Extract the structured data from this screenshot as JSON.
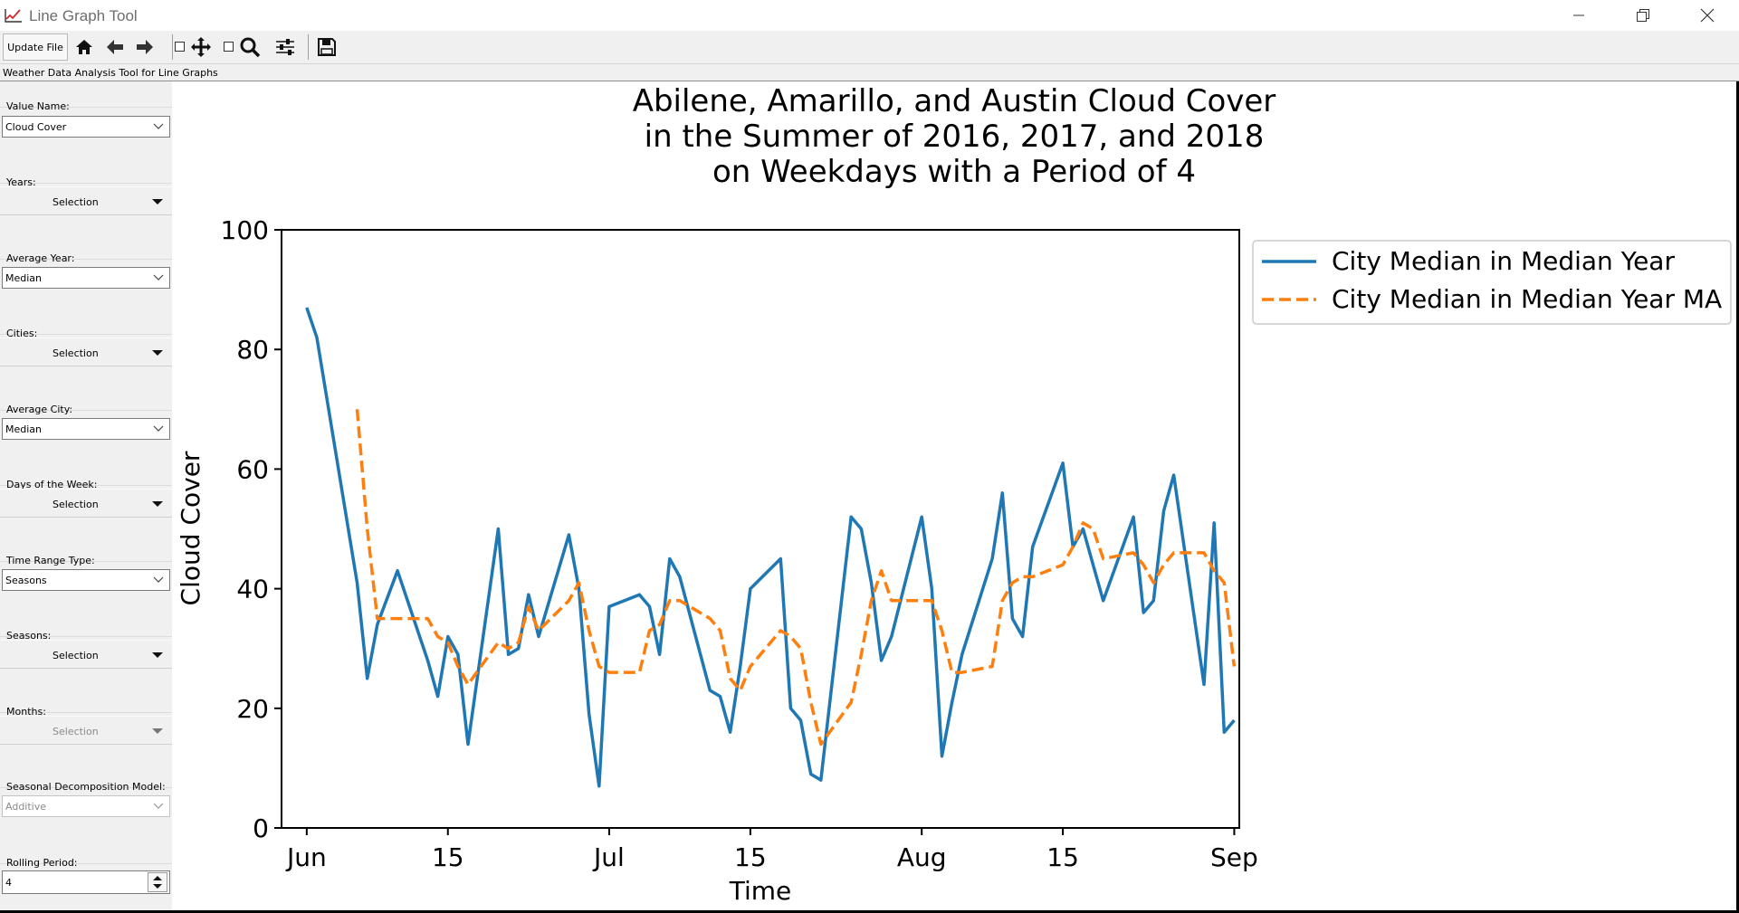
{
  "window": {
    "title": "Line Graph Tool"
  },
  "toolbar": {
    "update_label": "Update File",
    "icons": [
      "home-icon",
      "back-arrow-icon",
      "forward-arrow-icon",
      "pan-icon",
      "zoom-icon",
      "configure-subplots-icon",
      "save-icon"
    ]
  },
  "status_text": "Weather Data Analysis Tool for Line Graphs",
  "sidebar": {
    "value_name_label": "Value Name:",
    "value_name": "Cloud Cover",
    "years_label": "Years:",
    "years_button": "Selection",
    "average_year_label": "Average Year:",
    "average_year": "Median",
    "cities_label": "Cities:",
    "cities_button": "Selection",
    "average_city_label": "Average City:",
    "average_city": "Median",
    "days_label": "Days of the Week:",
    "days_button": "Selection",
    "time_range_label": "Time Range Type:",
    "time_range": "Seasons",
    "seasons_label": "Seasons:",
    "seasons_button": "Selection",
    "months_label": "Months:",
    "months_button": "Selection",
    "decomp_label": "Seasonal Decomposition Model:",
    "decomp_value": "Additive",
    "rolling_label": "Rolling Period:",
    "rolling_value": "4"
  },
  "chart_data": {
    "type": "line",
    "title_lines": [
      "Abilene, Amarillo, and Austin Cloud Cover",
      "in the Summer of 2016, 2017, and 2018",
      "on Weekdays with a Period of 4"
    ],
    "xlabel": "Time",
    "ylabel": "Cloud Cover",
    "ylim": [
      0,
      100
    ],
    "yticks": [
      0,
      20,
      40,
      60,
      80,
      100
    ],
    "xlim_day": [
      -2.5,
      92.5
    ],
    "xticks": [
      {
        "day": 0,
        "label": "Jun"
      },
      {
        "day": 14,
        "label": "15"
      },
      {
        "day": 30,
        "label": "Jul"
      },
      {
        "day": 44,
        "label": "15"
      },
      {
        "day": 61,
        "label": "Aug"
      },
      {
        "day": 75,
        "label": "15"
      },
      {
        "day": 92,
        "label": "Sep"
      }
    ],
    "legend_position": "upper-right-outside",
    "colors": {
      "series1": "#1f77b4",
      "series2": "#ff7f0e"
    },
    "series": [
      {
        "name": "City Median in Median Year",
        "style": "solid",
        "x": [
          0,
          1,
          5,
          6,
          7,
          9,
          12,
          13,
          14,
          15,
          16,
          19,
          20,
          21,
          22,
          23,
          26,
          27,
          28,
          29,
          30,
          33,
          34,
          35,
          36,
          37,
          40,
          41,
          42,
          43,
          44,
          47,
          48,
          49,
          50,
          51,
          54,
          55,
          56,
          57,
          58,
          61,
          62,
          63,
          64,
          65,
          68,
          69,
          70,
          71,
          72,
          75,
          76,
          77,
          78,
          79,
          82,
          83,
          84,
          85,
          86,
          89,
          90,
          91,
          92
        ],
        "y": [
          87,
          82,
          41,
          25,
          34,
          43,
          28,
          22,
          32,
          29,
          14,
          50,
          29,
          30,
          39,
          32,
          49,
          40,
          19,
          7,
          37,
          39,
          37,
          29,
          45,
          42,
          23,
          22,
          16,
          27,
          40,
          45,
          20,
          18,
          9,
          8,
          52,
          50,
          41,
          28,
          32,
          52,
          40,
          12,
          21,
          29,
          45,
          56,
          35,
          32,
          47,
          61,
          47,
          50,
          44,
          38,
          52,
          36,
          38,
          53,
          59,
          24,
          51,
          16,
          18
        ]
      },
      {
        "name": "City Median in Median Year MA",
        "style": "dashed",
        "x": [
          5,
          6,
          7,
          9,
          12,
          13,
          14,
          15,
          16,
          19,
          20,
          21,
          22,
          23,
          26,
          27,
          28,
          29,
          30,
          33,
          34,
          35,
          36,
          37,
          40,
          41,
          42,
          43,
          44,
          47,
          48,
          49,
          50,
          51,
          54,
          55,
          56,
          57,
          58,
          61,
          62,
          63,
          64,
          65,
          68,
          69,
          70,
          71,
          72,
          75,
          76,
          77,
          78,
          79,
          82,
          83,
          84,
          85,
          86,
          89,
          90,
          91,
          92
        ],
        "y": [
          70,
          50,
          35,
          35,
          35,
          32,
          31,
          27,
          24,
          31,
          30,
          31,
          37,
          33,
          38,
          41,
          33,
          27,
          26,
          26,
          33,
          34,
          38,
          38,
          35,
          33,
          25,
          23,
          27,
          33,
          32,
          30,
          21,
          14,
          21,
          29,
          38,
          43,
          38,
          38,
          38,
          33,
          26,
          26,
          27,
          38,
          41,
          42,
          42,
          44,
          47,
          51,
          50,
          45,
          46,
          44,
          41,
          44,
          46,
          46,
          43,
          41,
          27
        ]
      }
    ]
  }
}
